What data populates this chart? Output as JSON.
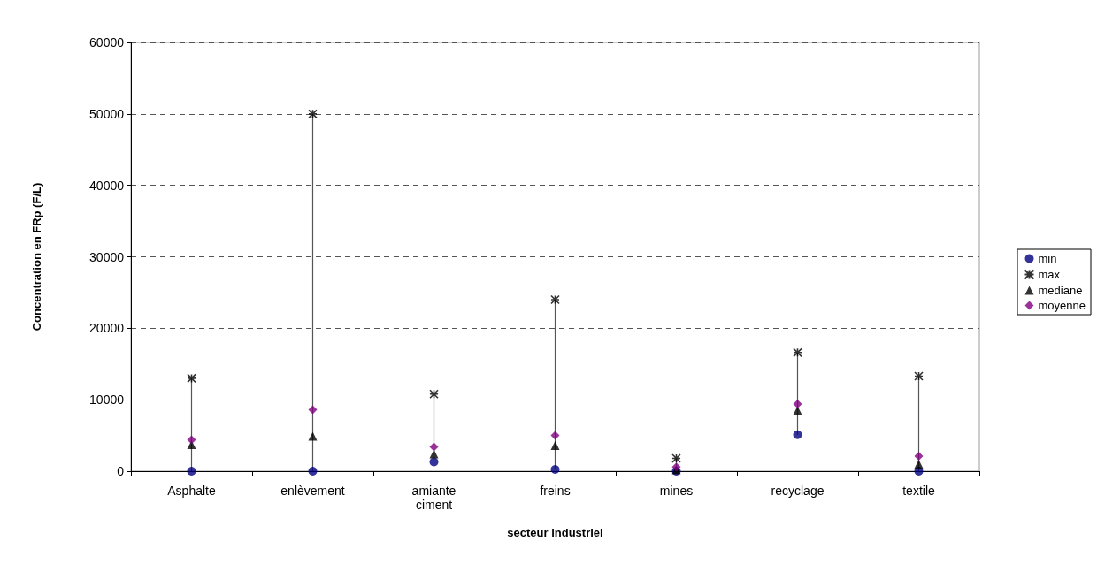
{
  "chart_data": {
    "type": "scatter",
    "xlabel": "secteur industriel",
    "ylabel": "Concentration en FRp (F/L)",
    "categories": [
      "Asphalte",
      "enlèvement",
      "amiante\nciment",
      "freins",
      "mines",
      "recyclage",
      "textile"
    ],
    "series": [
      {
        "name": "min",
        "color": "#000080",
        "marker": "circle",
        "values": [
          0,
          0,
          1300,
          250,
          0,
          5100,
          0
        ]
      },
      {
        "name": "max",
        "color": "#000000",
        "marker": "cross",
        "values": [
          13000,
          50000,
          10800,
          24000,
          1800,
          16600,
          13300
        ]
      },
      {
        "name": "mediane",
        "color": "#000000",
        "marker": "triangle",
        "values": [
          3700,
          4900,
          2400,
          3600,
          200,
          8500,
          1000
        ]
      },
      {
        "name": "moyenne",
        "color": "#800080",
        "marker": "diamond",
        "values": [
          4400,
          8600,
          3400,
          5000,
          600,
          9400,
          2100
        ]
      }
    ],
    "ylim": [
      0,
      60000
    ],
    "yticks": [
      0,
      10000,
      20000,
      30000,
      40000,
      50000,
      60000
    ],
    "grid": "y",
    "legend": "right"
  }
}
